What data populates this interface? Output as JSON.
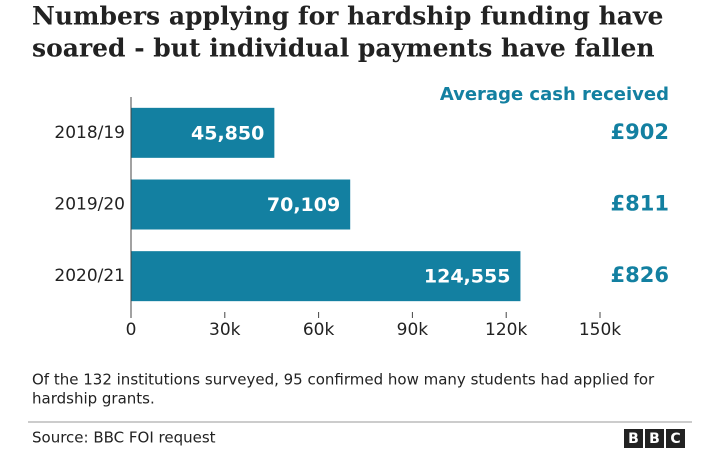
{
  "chart_data": {
    "type": "barh",
    "title": [
      "Numbers applying for hardship funding have",
      "soared - but individual payments have fallen"
    ],
    "categories": [
      "2018/19",
      "2019/20",
      "2020/21"
    ],
    "values": [
      45850,
      70109,
      124555
    ],
    "value_labels": [
      "45,850",
      "70,109",
      "124,555"
    ],
    "color": "#1380a1",
    "xlim": [
      0,
      150000
    ],
    "xticks": [
      0,
      {
        "value": 30000,
        "label": "30k"
      },
      {
        "value": 60000,
        "label": "60k"
      },
      {
        "value": 90000,
        "label": "90k"
      },
      {
        "value": 120000,
        "label": "120k"
      },
      {
        "value": 150000,
        "label": "150k"
      }
    ],
    "side_header": "Average cash received",
    "side_labels": [
      "£902",
      "£811",
      "£826"
    ],
    "note": [
      "Of the 132 institutions surveyed, 95 confirmed how many students had applied for",
      "hardship grants."
    ],
    "source": "Source: BBC FOI request",
    "logo": [
      "B",
      "B",
      "C"
    ]
  }
}
